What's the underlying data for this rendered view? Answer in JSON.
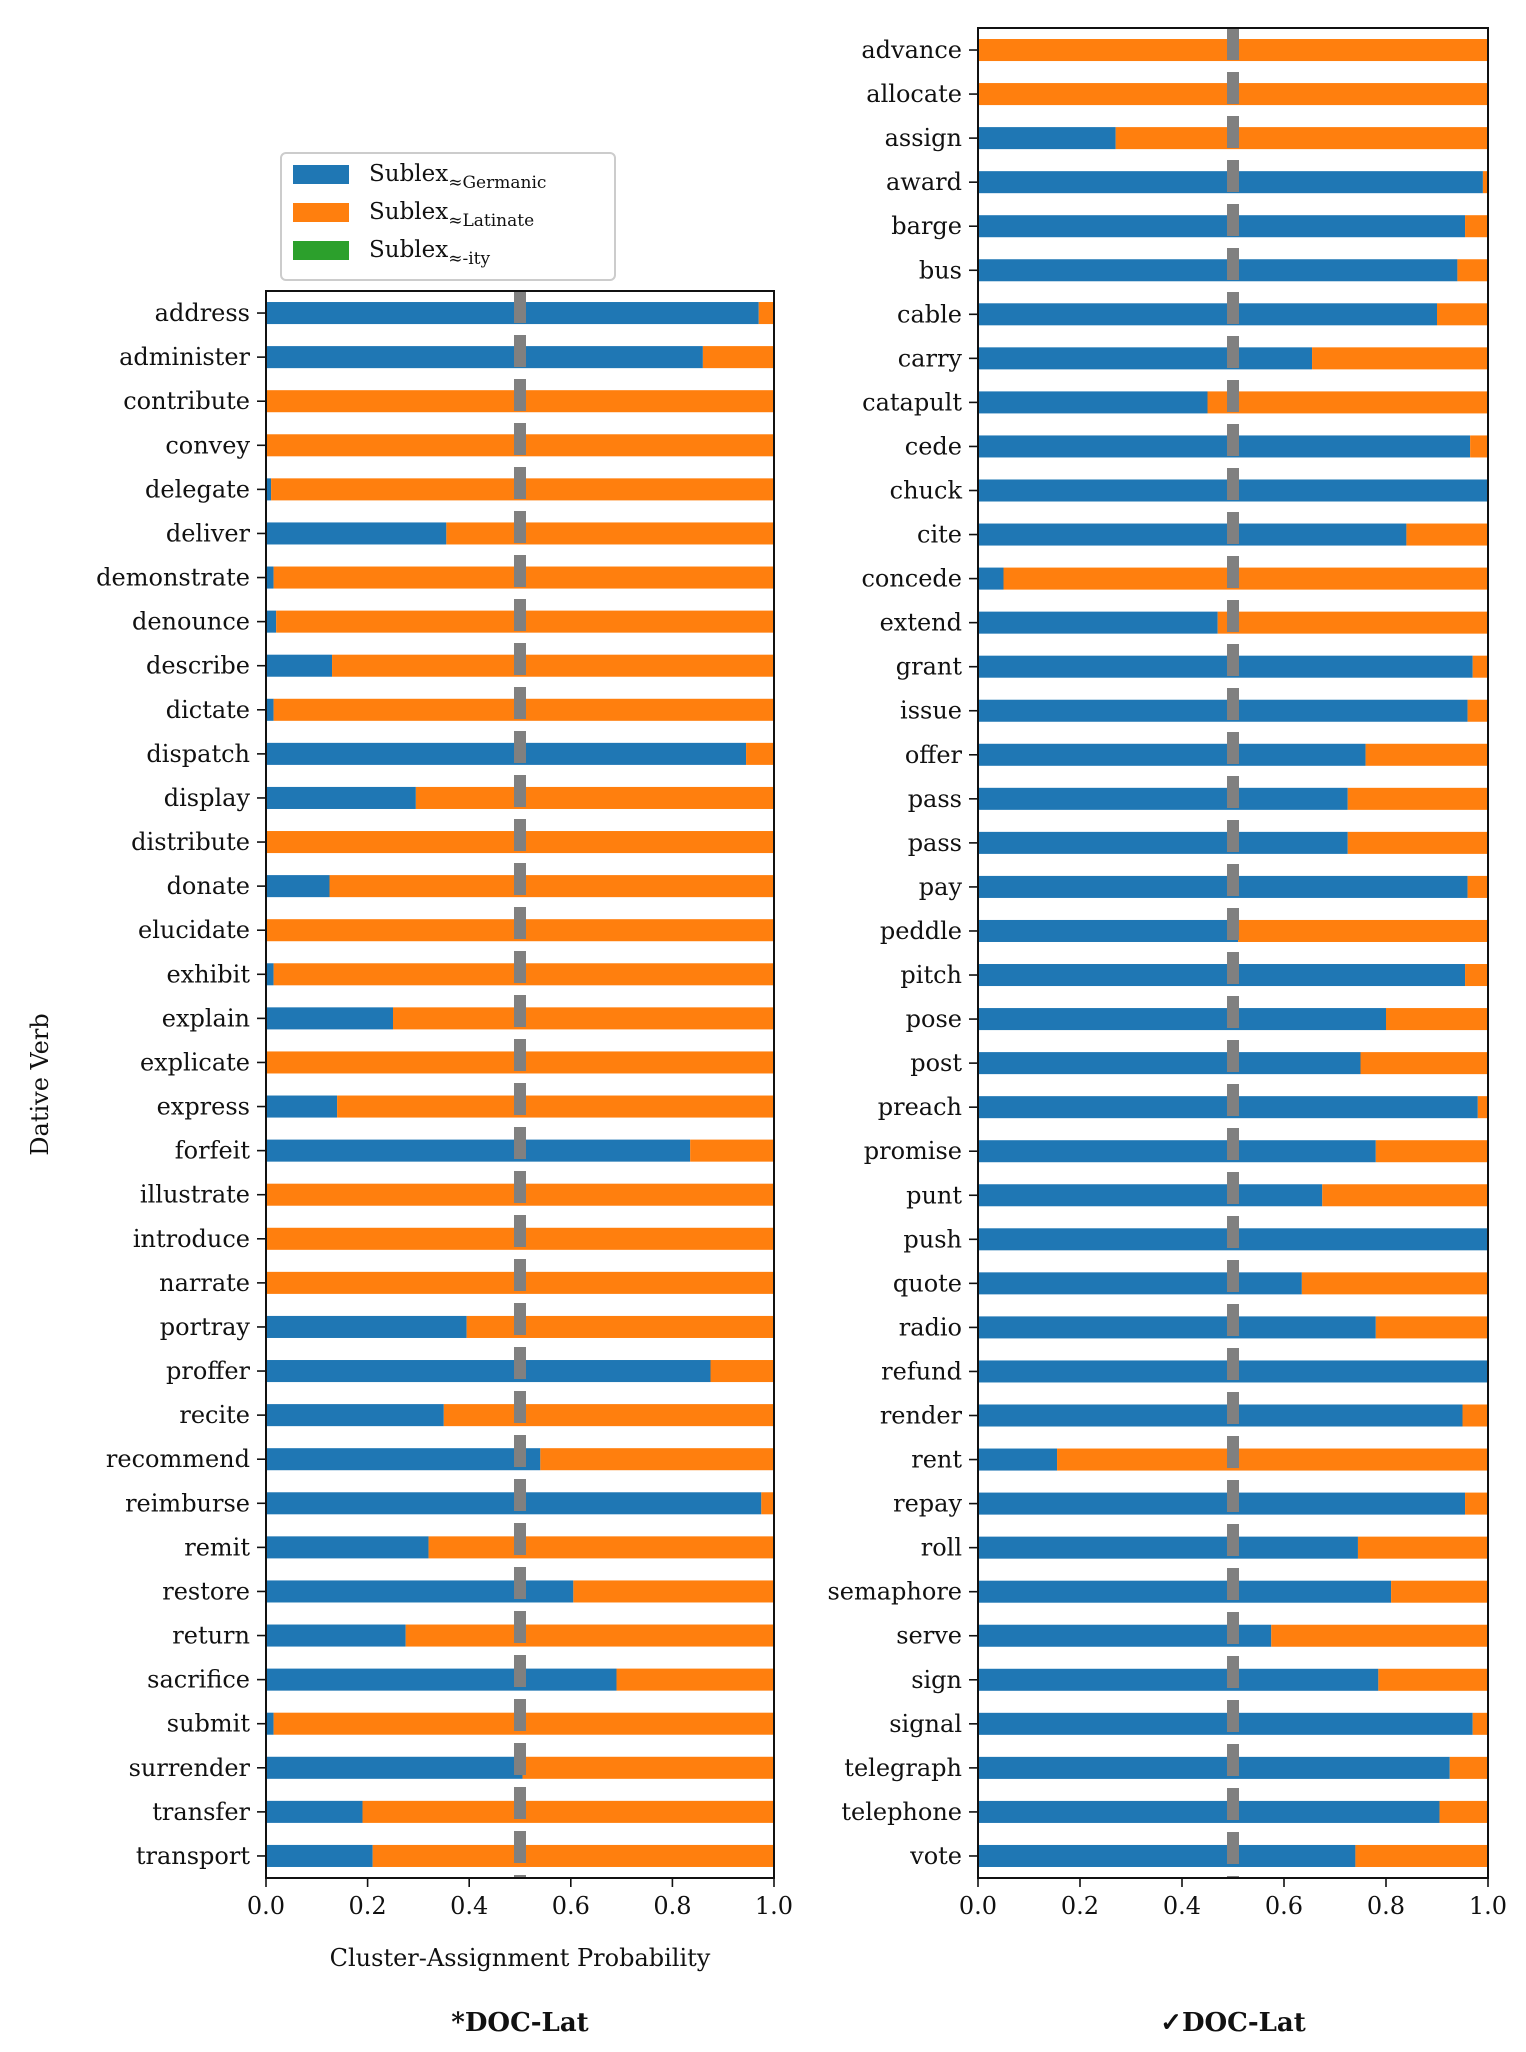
{
  "colors": {
    "germanic": "#1f77b4",
    "latinate": "#ff7f0e",
    "ity": "#2ca02c",
    "threshold": "#808080"
  },
  "legend": {
    "entries": [
      {
        "prefix": "Sublex",
        "subscript": "≈Germanic",
        "color": "#1f77b4"
      },
      {
        "prefix": "Sublex",
        "subscript": "≈Latinate",
        "color": "#ff7f0e"
      },
      {
        "prefix": "Sublex",
        "subscript": "≈-ity",
        "color": "#2ca02c"
      }
    ]
  },
  "chart_data": [
    {
      "type": "bar",
      "orientation": "horizontal",
      "stacked": true,
      "caption": "*DOC-Lat",
      "ylabel": "Dative Verb",
      "xlabel": "Cluster-Assignment Probability",
      "xlim": [
        0,
        1
      ],
      "xticks": [
        "0.0",
        "0.2",
        "0.4",
        "0.6",
        "0.8",
        "1.0"
      ],
      "threshold": 0.5,
      "legend_position": "above plot",
      "categories": [
        "address",
        "administer",
        "contribute",
        "convey",
        "delegate",
        "deliver",
        "demonstrate",
        "denounce",
        "describe",
        "dictate",
        "dispatch",
        "display",
        "distribute",
        "donate",
        "elucidate",
        "exhibit",
        "explain",
        "explicate",
        "express",
        "forfeit",
        "illustrate",
        "introduce",
        "narrate",
        "portray",
        "proffer",
        "recite",
        "recommend",
        "reimburse",
        "remit",
        "restore",
        "return",
        "sacrifice",
        "submit",
        "surrender",
        "transfer",
        "transport"
      ],
      "series": [
        {
          "name": "Sublex≈Germanic",
          "values": [
            0.97,
            0.86,
            0.0,
            0.0,
            0.01,
            0.355,
            0.015,
            0.02,
            0.13,
            0.015,
            0.945,
            0.295,
            0.0,
            0.125,
            0.0,
            0.015,
            0.25,
            0.0,
            0.14,
            0.835,
            0.0,
            0.0,
            0.0,
            0.395,
            0.875,
            0.35,
            0.54,
            0.975,
            0.32,
            0.605,
            0.275,
            0.69,
            0.015,
            0.505,
            0.19,
            0.21
          ]
        },
        {
          "name": "Sublex≈Latinate",
          "values": [
            0.03,
            0.14,
            1.0,
            1.0,
            0.99,
            0.645,
            0.985,
            0.98,
            0.87,
            0.985,
            0.055,
            0.705,
            1.0,
            0.875,
            1.0,
            0.985,
            0.75,
            1.0,
            0.86,
            0.165,
            1.0,
            1.0,
            1.0,
            0.605,
            0.125,
            0.65,
            0.46,
            0.025,
            0.68,
            0.395,
            0.725,
            0.31,
            0.985,
            0.495,
            0.81,
            0.79
          ]
        },
        {
          "name": "Sublex≈-ity",
          "values": [
            0,
            0,
            0,
            0,
            0,
            0,
            0,
            0,
            0,
            0,
            0,
            0,
            0,
            0,
            0,
            0,
            0,
            0,
            0,
            0,
            0,
            0,
            0,
            0,
            0,
            0,
            0,
            0,
            0,
            0,
            0,
            0,
            0,
            0,
            0,
            0
          ]
        }
      ]
    },
    {
      "type": "bar",
      "orientation": "horizontal",
      "stacked": true,
      "caption": "✓DOC-Lat",
      "xlim": [
        0,
        1
      ],
      "xticks": [
        "0.0",
        "0.2",
        "0.4",
        "0.6",
        "0.8",
        "1.0"
      ],
      "threshold": 0.5,
      "categories": [
        "advance",
        "allocate",
        "assign",
        "award",
        "barge",
        "bus",
        "cable",
        "carry",
        "catapult",
        "cede",
        "chuck",
        "cite",
        "concede",
        "extend",
        "grant",
        "issue",
        "offer",
        "pass",
        "pass",
        "pay",
        "peddle",
        "pitch",
        "pose",
        "post",
        "preach",
        "promise",
        "punt",
        "push",
        "quote",
        "radio",
        "refund",
        "render",
        "rent",
        "repay",
        "roll",
        "semaphore",
        "serve",
        "sign",
        "signal",
        "telegraph",
        "telephone",
        "vote"
      ],
      "series": [
        {
          "name": "Sublex≈Germanic",
          "values": [
            0.0,
            0.0,
            0.27,
            0.99,
            0.955,
            0.94,
            0.9,
            0.655,
            0.45,
            0.965,
            1.0,
            0.84,
            0.05,
            0.47,
            0.97,
            0.96,
            0.76,
            0.725,
            0.725,
            0.96,
            0.51,
            0.955,
            0.8,
            0.75,
            0.98,
            0.78,
            0.675,
            1.0,
            0.635,
            0.78,
            1.0,
            0.95,
            0.155,
            0.955,
            0.745,
            0.81,
            0.575,
            0.785,
            0.97,
            0.925,
            0.905,
            0.74
          ]
        },
        {
          "name": "Sublex≈Latinate",
          "values": [
            1.0,
            1.0,
            0.73,
            0.01,
            0.045,
            0.06,
            0.1,
            0.345,
            0.55,
            0.035,
            0.0,
            0.16,
            0.95,
            0.53,
            0.03,
            0.04,
            0.24,
            0.275,
            0.275,
            0.04,
            0.49,
            0.045,
            0.2,
            0.25,
            0.02,
            0.22,
            0.325,
            0.0,
            0.365,
            0.22,
            0.0,
            0.05,
            0.845,
            0.045,
            0.255,
            0.19,
            0.425,
            0.215,
            0.03,
            0.075,
            0.095,
            0.26
          ]
        },
        {
          "name": "Sublex≈-ity",
          "values": [
            0,
            0,
            0,
            0,
            0,
            0,
            0,
            0,
            0,
            0,
            0,
            0,
            0,
            0,
            0,
            0,
            0,
            0,
            0,
            0,
            0,
            0,
            0,
            0,
            0,
            0,
            0,
            0,
            0,
            0,
            0,
            0,
            0,
            0,
            0,
            0,
            0,
            0,
            0,
            0,
            0,
            0
          ]
        }
      ]
    }
  ]
}
